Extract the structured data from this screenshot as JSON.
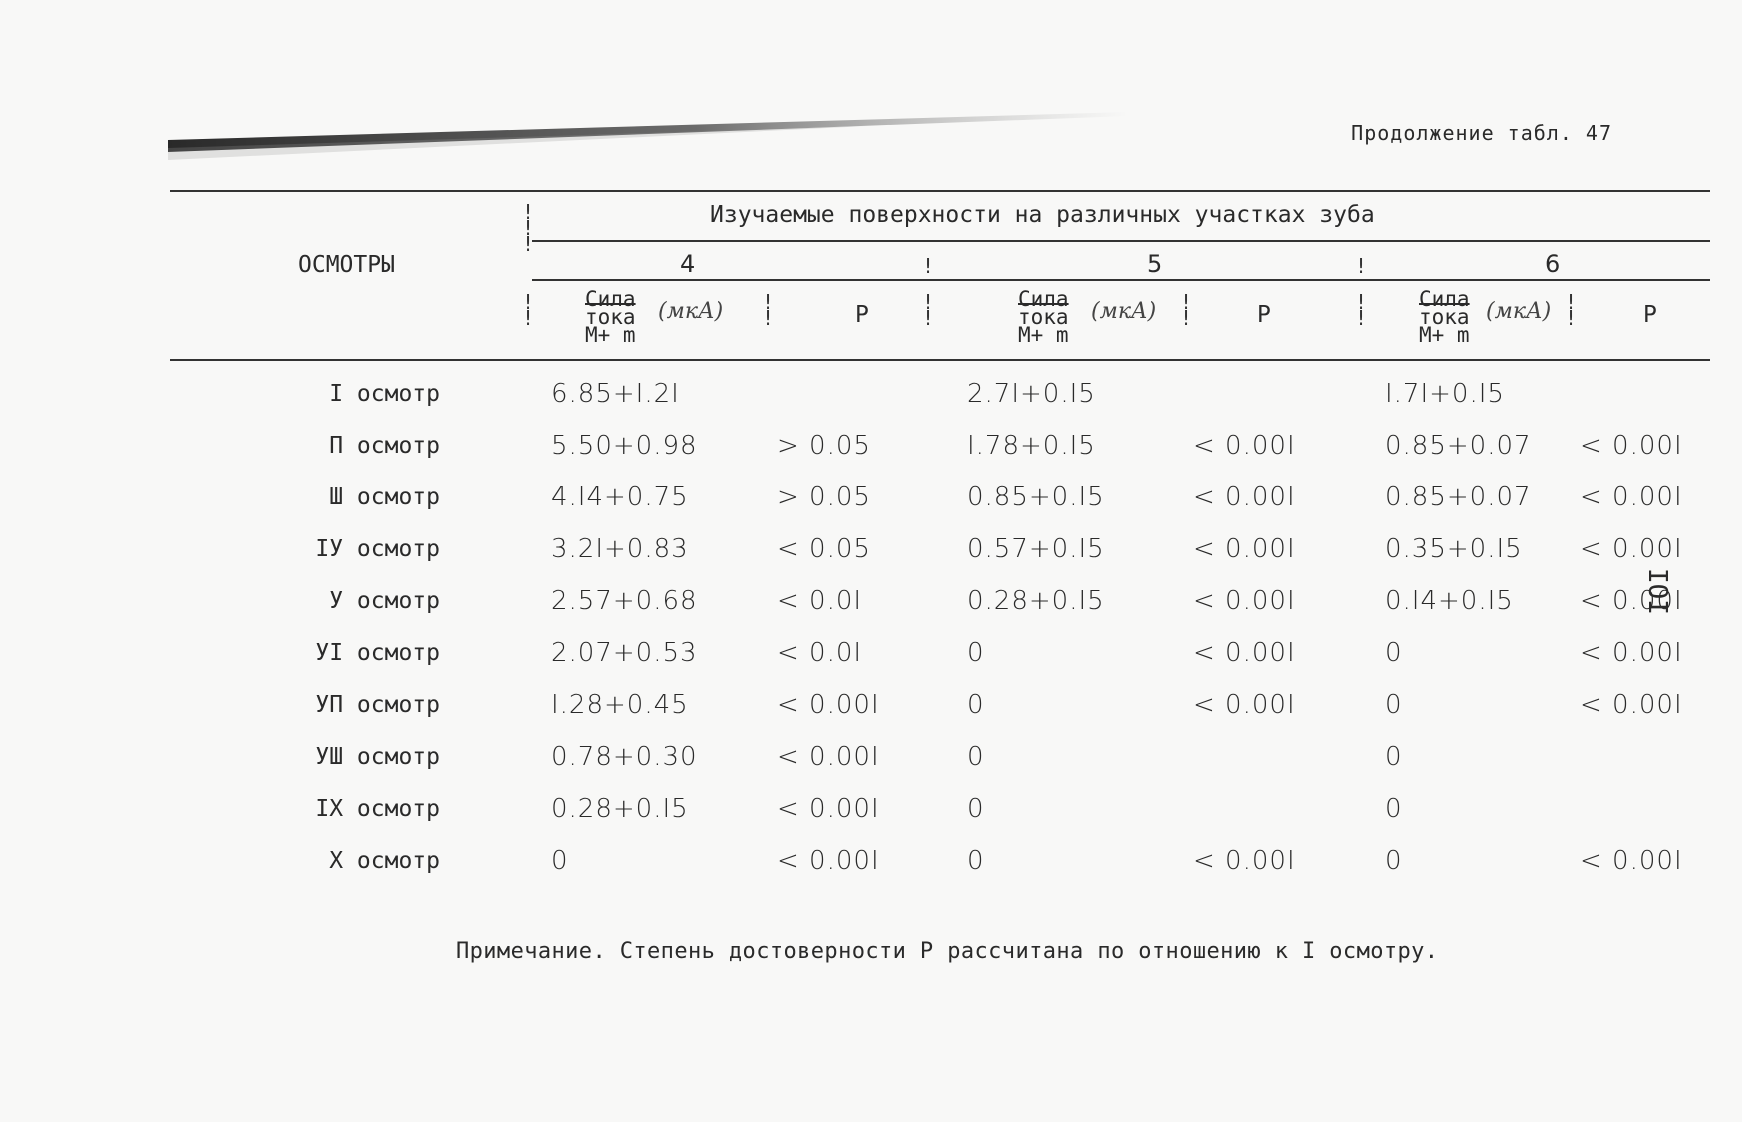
{
  "header": {
    "continuation": "Продолжение табл. 47"
  },
  "table": {
    "row_header": "ОСМОТРЫ",
    "span_header": "Изучаемые поверхности на различных участках зуба",
    "groups": [
      {
        "number": "4",
        "measure_line1": "Сила",
        "measure_line2": "тока",
        "measure_line3": "M+ m",
        "unit": "(мкА)",
        "p_label": "Р"
      },
      {
        "number": "5",
        "measure_line1": "Сила",
        "measure_line2": "тока",
        "measure_line3": "M+ m",
        "unit": "(мкА)",
        "p_label": "Р"
      },
      {
        "number": "6",
        "measure_line1": "Сила",
        "measure_line2": "тока",
        "measure_line3": "M+ m",
        "unit": "(мкА)",
        "p_label": "Р"
      }
    ],
    "rows": [
      {
        "label": "I осмотр",
        "v4": "6.85+I.2I",
        "p4": "",
        "v5": "2.7I+0.I5",
        "p5": "",
        "v6": "I.7I+0.I5",
        "p6": ""
      },
      {
        "label": "П осмотр",
        "v4": "5.50+0.98",
        "p4": "> 0.05",
        "v5": "I.78+0.I5",
        "p5": "< 0.00I",
        "v6": "0.85+0.07",
        "p6": "< 0.00I"
      },
      {
        "label": "Ш осмотр",
        "v4": "4.I4+0.75",
        "p4": "> 0.05",
        "v5": "0.85+0.I5",
        "p5": "< 0.00I",
        "v6": "0.85+0.07",
        "p6": "< 0.00I"
      },
      {
        "label": "IУ осмотр",
        "v4": "3.2I+0.83",
        "p4": "< 0.05",
        "v5": "0.57+0.I5",
        "p5": "< 0.00I",
        "v6": "0.35+0.I5",
        "p6": "< 0.00I"
      },
      {
        "label": "У осмотр",
        "v4": "2.57+0.68",
        "p4": "< 0.0I",
        "v5": "0.28+0.I5",
        "p5": "< 0.00I",
        "v6": "0.I4+0.I5",
        "p6": "< 0.00I"
      },
      {
        "label": "УI осмотр",
        "v4": "2.07+0.53",
        "p4": "< 0.0I",
        "v5": "0",
        "p5": "< 0.00I",
        "v6": "0",
        "p6": "< 0.00I"
      },
      {
        "label": "УП осмотр",
        "v4": "I.28+0.45",
        "p4": "< 0.00I",
        "v5": "0",
        "p5": "< 0.00I",
        "v6": "0",
        "p6": "< 0.00I"
      },
      {
        "label": "УШ осмотр",
        "v4": "0.78+0.30",
        "p4": "< 0.00I",
        "v5": "0",
        "p5": "",
        "v6": "0",
        "p6": ""
      },
      {
        "label": "IХ осмотр",
        "v4": "0.28+0.I5",
        "p4": "< 0.00I",
        "v5": "0",
        "p5": "",
        "v6": "0",
        "p6": ""
      },
      {
        "label": "Х осмотр",
        "v4": "0",
        "p4": "< 0.00I",
        "v5": "0",
        "p5": "< 0.00I",
        "v6": "0",
        "p6": "< 0.00I"
      }
    ]
  },
  "note": "Примечание. Степень достоверности Р рассчитана по отношению к I осмотру.",
  "page_number": "IOI"
}
